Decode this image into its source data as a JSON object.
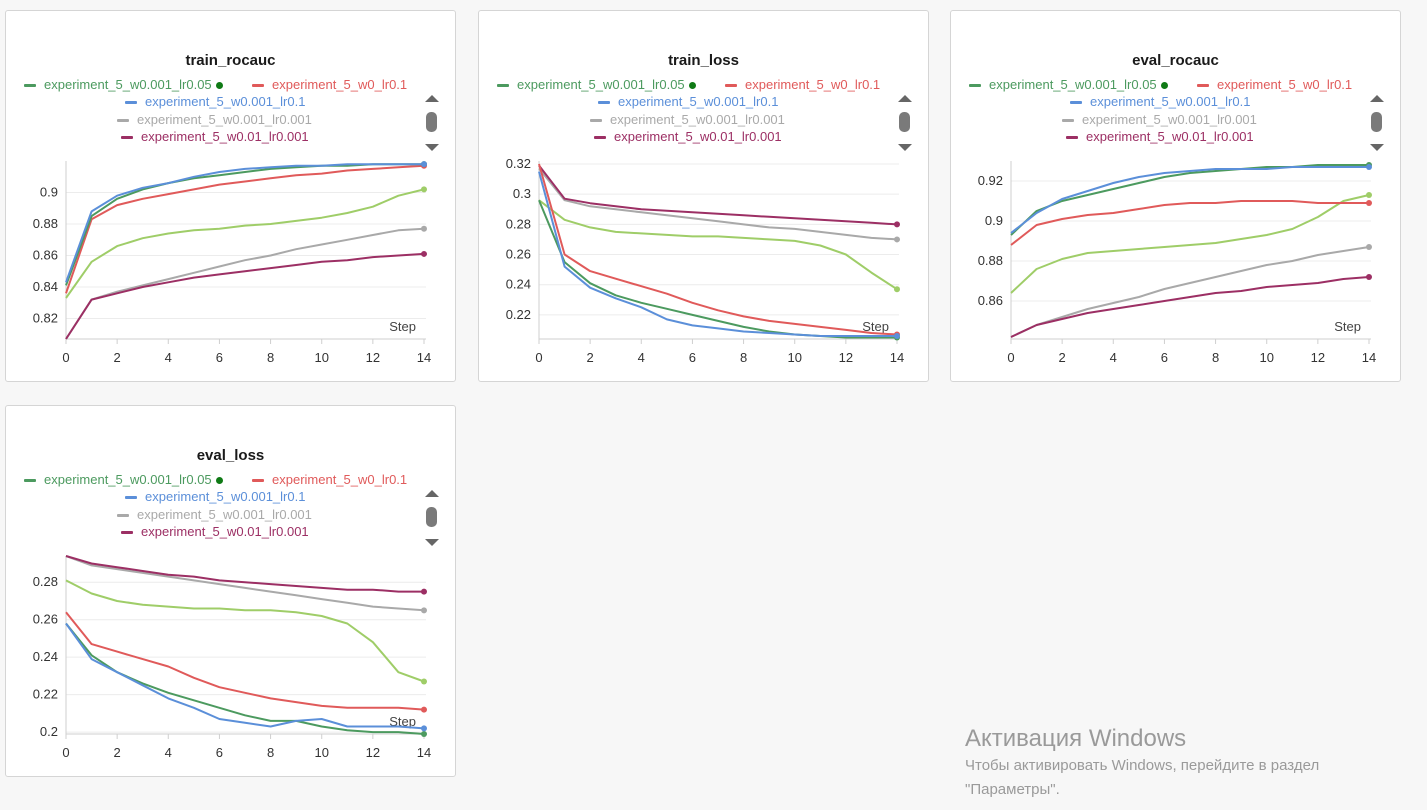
{
  "series_meta": [
    {
      "name": "experiment_5_w0.001_lr0.05",
      "color": "#4c9a5f"
    },
    {
      "name": "experiment_5_w0_lr0.1",
      "color": "#e05a5a"
    },
    {
      "name": "experiment_5_w0.001_lr0.1",
      "color": "#5b8fd9"
    },
    {
      "name": "experiment_5_w0.001_lr0.001",
      "color": "#a9a9a9"
    },
    {
      "name": "experiment_5_w0.01_lr0.001",
      "color": "#9c2f64"
    },
    {
      "name": "",
      "color": "#9fcd68"
    }
  ],
  "legend": {
    "active_dot_color": "#0f7a15"
  },
  "watermark": {
    "title": "Активация Windows",
    "line1": "Чтобы активировать Windows, перейдите в раздел",
    "line2": "\"Параметры\"."
  },
  "chart_data": [
    {
      "type": "line",
      "title": "train_rocauc",
      "xlabel": "Step",
      "x": [
        0,
        1,
        2,
        3,
        4,
        5,
        6,
        7,
        8,
        9,
        10,
        11,
        12,
        13,
        14
      ],
      "xlim": [
        0,
        14
      ],
      "ylim": [
        0.807,
        0.92
      ],
      "xticks": [
        "0",
        "2",
        "4",
        "6",
        "8",
        "10",
        "12",
        "14"
      ],
      "yticks": [
        "0.82",
        "0.84",
        "0.86",
        "0.88",
        "0.9"
      ],
      "series": [
        {
          "values": [
            0.841,
            0.885,
            0.896,
            0.902,
            0.906,
            0.909,
            0.911,
            0.913,
            0.915,
            0.916,
            0.917,
            0.917,
            0.918,
            0.918,
            0.918
          ]
        },
        {
          "values": [
            0.836,
            0.883,
            0.892,
            0.896,
            0.899,
            0.902,
            0.905,
            0.907,
            0.909,
            0.911,
            0.912,
            0.914,
            0.915,
            0.916,
            0.917
          ]
        },
        {
          "values": [
            0.843,
            0.888,
            0.898,
            0.903,
            0.906,
            0.91,
            0.913,
            0.915,
            0.916,
            0.917,
            0.917,
            0.918,
            0.918,
            0.918,
            0.918
          ]
        },
        {
          "values": [
            0.807,
            0.832,
            0.837,
            0.841,
            0.845,
            0.849,
            0.853,
            0.857,
            0.86,
            0.864,
            0.867,
            0.87,
            0.873,
            0.876,
            0.877
          ]
        },
        {
          "values": [
            0.807,
            0.832,
            0.836,
            0.84,
            0.843,
            0.846,
            0.848,
            0.85,
            0.852,
            0.854,
            0.856,
            0.857,
            0.859,
            0.86,
            0.861
          ]
        },
        {
          "values": [
            0.833,
            0.856,
            0.866,
            0.871,
            0.874,
            0.876,
            0.877,
            0.879,
            0.88,
            0.882,
            0.884,
            0.887,
            0.891,
            0.898,
            0.902
          ]
        }
      ]
    },
    {
      "type": "line",
      "title": "train_loss",
      "xlabel": "Step",
      "x": [
        0,
        1,
        2,
        3,
        4,
        5,
        6,
        7,
        8,
        9,
        10,
        11,
        12,
        13,
        14
      ],
      "xlim": [
        0,
        14
      ],
      "ylim": [
        0.204,
        0.322
      ],
      "xticks": [
        "0",
        "2",
        "4",
        "6",
        "8",
        "10",
        "12",
        "14"
      ],
      "yticks": [
        "0.22",
        "0.24",
        "0.26",
        "0.28",
        "0.3",
        "0.32"
      ],
      "series": [
        {
          "values": [
            0.296,
            0.255,
            0.241,
            0.233,
            0.228,
            0.224,
            0.22,
            0.216,
            0.212,
            0.209,
            0.207,
            0.206,
            0.205,
            0.205,
            0.205
          ]
        },
        {
          "values": [
            0.32,
            0.26,
            0.249,
            0.244,
            0.239,
            0.234,
            0.228,
            0.223,
            0.219,
            0.216,
            0.214,
            0.212,
            0.21,
            0.208,
            0.207
          ]
        },
        {
          "values": [
            0.315,
            0.252,
            0.238,
            0.231,
            0.225,
            0.217,
            0.213,
            0.211,
            0.209,
            0.208,
            0.207,
            0.206,
            0.206,
            0.206,
            0.206
          ]
        },
        {
          "values": [
            0.317,
            0.296,
            0.292,
            0.29,
            0.288,
            0.286,
            0.284,
            0.282,
            0.28,
            0.278,
            0.277,
            0.275,
            0.273,
            0.271,
            0.27
          ]
        },
        {
          "values": [
            0.319,
            0.297,
            0.294,
            0.292,
            0.29,
            0.289,
            0.288,
            0.287,
            0.286,
            0.285,
            0.284,
            0.283,
            0.282,
            0.281,
            0.28
          ]
        },
        {
          "values": [
            0.296,
            0.283,
            0.278,
            0.275,
            0.274,
            0.273,
            0.272,
            0.272,
            0.271,
            0.27,
            0.269,
            0.266,
            0.26,
            0.248,
            0.237
          ]
        }
      ]
    },
    {
      "type": "line",
      "title": "eval_rocauc",
      "xlabel": "Step",
      "x": [
        0,
        1,
        2,
        3,
        4,
        5,
        6,
        7,
        8,
        9,
        10,
        11,
        12,
        13,
        14
      ],
      "xlim": [
        0,
        14
      ],
      "ylim": [
        0.841,
        0.93
      ],
      "xticks": [
        "0",
        "2",
        "4",
        "6",
        "8",
        "10",
        "12",
        "14"
      ],
      "yticks": [
        "0.86",
        "0.88",
        "0.9",
        "0.92"
      ],
      "series": [
        {
          "values": [
            0.893,
            0.905,
            0.91,
            0.913,
            0.916,
            0.919,
            0.922,
            0.924,
            0.925,
            0.926,
            0.927,
            0.927,
            0.928,
            0.928,
            0.928
          ]
        },
        {
          "values": [
            0.888,
            0.898,
            0.901,
            0.903,
            0.904,
            0.906,
            0.908,
            0.909,
            0.909,
            0.91,
            0.91,
            0.91,
            0.909,
            0.909,
            0.909
          ]
        },
        {
          "values": [
            0.894,
            0.904,
            0.911,
            0.915,
            0.919,
            0.922,
            0.924,
            0.925,
            0.926,
            0.926,
            0.926,
            0.927,
            0.927,
            0.927,
            0.927
          ]
        },
        {
          "values": [
            0.842,
            0.848,
            0.852,
            0.856,
            0.859,
            0.862,
            0.866,
            0.869,
            0.872,
            0.875,
            0.878,
            0.88,
            0.883,
            0.885,
            0.887
          ]
        },
        {
          "values": [
            0.842,
            0.848,
            0.851,
            0.854,
            0.856,
            0.858,
            0.86,
            0.862,
            0.864,
            0.865,
            0.867,
            0.868,
            0.869,
            0.871,
            0.872
          ]
        },
        {
          "values": [
            0.864,
            0.876,
            0.881,
            0.884,
            0.885,
            0.886,
            0.887,
            0.888,
            0.889,
            0.891,
            0.893,
            0.896,
            0.902,
            0.91,
            0.913
          ]
        }
      ]
    },
    {
      "type": "line",
      "title": "eval_loss",
      "xlabel": "Step",
      "x": [
        0,
        1,
        2,
        3,
        4,
        5,
        6,
        7,
        8,
        9,
        10,
        11,
        12,
        13,
        14
      ],
      "xlim": [
        0,
        14
      ],
      "ylim": [
        0.199,
        0.294
      ],
      "xticks": [
        "0",
        "2",
        "4",
        "6",
        "8",
        "10",
        "12",
        "14"
      ],
      "yticks": [
        "0.2",
        "0.22",
        "0.24",
        "0.26",
        "0.28"
      ],
      "series": [
        {
          "values": [
            0.258,
            0.241,
            0.232,
            0.226,
            0.221,
            0.217,
            0.213,
            0.209,
            0.206,
            0.206,
            0.203,
            0.201,
            0.2,
            0.2,
            0.199
          ]
        },
        {
          "values": [
            0.264,
            0.247,
            0.243,
            0.239,
            0.235,
            0.229,
            0.224,
            0.221,
            0.218,
            0.216,
            0.214,
            0.213,
            0.213,
            0.213,
            0.212
          ]
        },
        {
          "values": [
            0.258,
            0.239,
            0.232,
            0.225,
            0.218,
            0.213,
            0.207,
            0.205,
            0.203,
            0.206,
            0.207,
            0.203,
            0.203,
            0.203,
            0.202
          ]
        },
        {
          "values": [
            0.294,
            0.289,
            0.287,
            0.285,
            0.283,
            0.281,
            0.279,
            0.277,
            0.275,
            0.273,
            0.271,
            0.269,
            0.267,
            0.266,
            0.265
          ]
        },
        {
          "values": [
            0.294,
            0.29,
            0.288,
            0.286,
            0.284,
            0.283,
            0.281,
            0.28,
            0.279,
            0.278,
            0.277,
            0.276,
            0.276,
            0.275,
            0.275
          ]
        },
        {
          "values": [
            0.281,
            0.274,
            0.27,
            0.268,
            0.267,
            0.266,
            0.266,
            0.265,
            0.265,
            0.264,
            0.262,
            0.258,
            0.248,
            0.232,
            0.227
          ]
        }
      ]
    }
  ]
}
